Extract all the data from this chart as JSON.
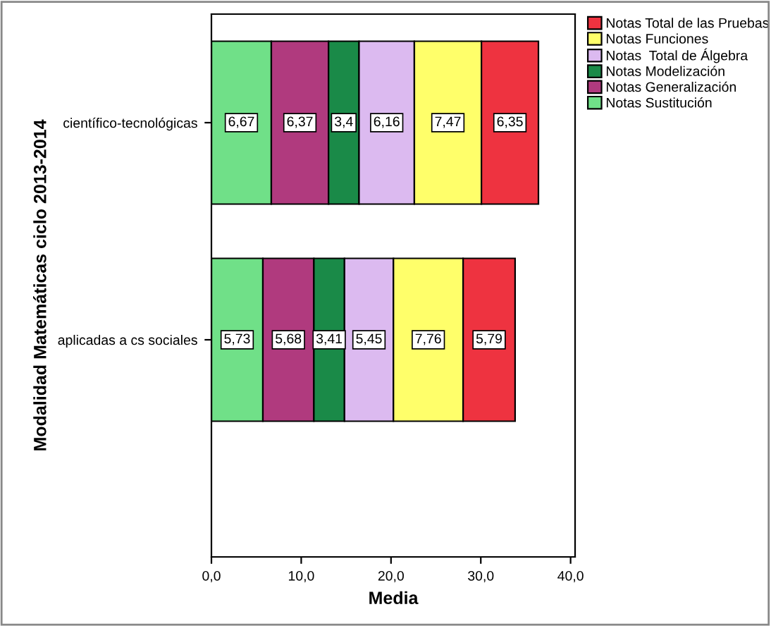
{
  "chart_data": {
    "type": "bar",
    "orientation": "horizontal",
    "stacked": true,
    "xlabel": "Media",
    "ylabel": "Modalidad Matemáticas ciclo 2013-2014",
    "categories": [
      "científico-tecnológicas",
      "aplicadas a cs sociales"
    ],
    "series": [
      {
        "name": "Notas Sustitución",
        "color": "#70e088",
        "values": [
          6.67,
          5.73
        ],
        "value_labels": [
          "6,67",
          "5,73"
        ]
      },
      {
        "name": "Notas Generalización",
        "color": "#b03a7e",
        "values": [
          6.37,
          5.68
        ],
        "value_labels": [
          "6,37",
          "5,68"
        ]
      },
      {
        "name": "Notas Modelización",
        "color": "#1a8a48",
        "values": [
          3.4,
          3.41
        ],
        "value_labels": [
          "3,4",
          "3,41"
        ]
      },
      {
        "name": "Notas  Total de Álgebra",
        "color": "#dcbaf0",
        "values": [
          6.16,
          5.45
        ],
        "value_labels": [
          "6,16",
          "5,45"
        ]
      },
      {
        "name": "Notas Funciones",
        "color": "#ffff6a",
        "values": [
          7.47,
          7.76
        ],
        "value_labels": [
          "7,47",
          "7,76"
        ]
      },
      {
        "name": "Notas Total de las Pruebas",
        "color": "#ee3340",
        "values": [
          6.35,
          5.79
        ],
        "value_labels": [
          "6,35",
          "5,79"
        ]
      }
    ],
    "xlim": [
      0,
      40.5
    ],
    "xticks": [
      {
        "value": 0,
        "label": "0,0"
      },
      {
        "value": 10,
        "label": "10,0"
      },
      {
        "value": 20,
        "label": "20,0"
      },
      {
        "value": 30,
        "label": "30,0"
      },
      {
        "value": 40,
        "label": "40,0"
      }
    ],
    "legend": "top right",
    "grid": false
  }
}
